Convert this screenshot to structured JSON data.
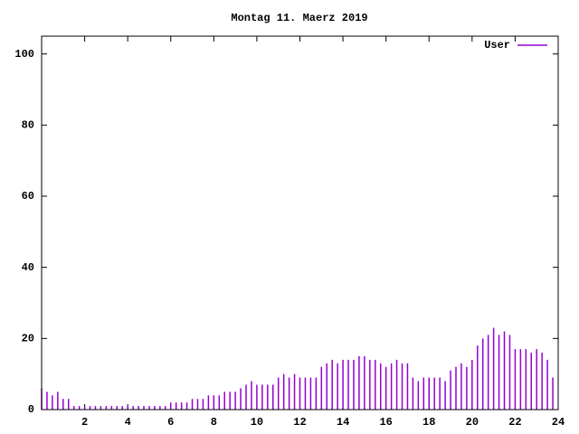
{
  "chart_data": {
    "type": "impulses",
    "title": "Montag 11. Maerz 2019",
    "x": [
      0,
      0.25,
      0.5,
      0.75,
      1,
      1.25,
      1.5,
      1.75,
      2,
      2.25,
      2.5,
      2.75,
      3,
      3.25,
      3.5,
      3.75,
      4,
      4.25,
      4.5,
      4.75,
      5,
      5.25,
      5.5,
      5.75,
      6,
      6.25,
      6.5,
      6.75,
      7,
      7.25,
      7.5,
      7.75,
      8,
      8.25,
      8.5,
      8.75,
      9,
      9.25,
      9.5,
      9.75,
      10,
      10.25,
      10.5,
      10.75,
      11,
      11.25,
      11.5,
      11.75,
      12,
      12.25,
      12.5,
      12.75,
      13,
      13.25,
      13.5,
      13.75,
      14,
      14.25,
      14.5,
      14.75,
      15,
      15.25,
      15.5,
      15.75,
      16,
      16.25,
      16.5,
      16.75,
      17,
      17.25,
      17.5,
      17.75,
      18,
      18.25,
      18.5,
      18.75,
      19,
      19.25,
      19.5,
      19.75,
      20,
      20.25,
      20.5,
      20.75,
      21,
      21.25,
      21.5,
      21.75,
      22,
      22.25,
      22.5,
      22.75,
      23,
      23.25,
      23.5,
      23.75
    ],
    "series": [
      {
        "name": "User",
        "color": "#9400d3",
        "values": [
          6,
          5,
          4,
          5,
          3,
          3,
          1,
          1,
          1,
          1,
          1,
          1,
          1,
          1,
          1,
          1,
          1,
          1,
          1,
          1,
          1,
          1,
          1,
          1,
          2,
          2,
          2,
          2,
          3,
          3,
          3,
          4,
          4,
          4,
          5,
          5,
          5,
          6,
          7,
          8,
          7,
          7,
          7,
          7,
          9,
          10,
          9,
          10,
          9,
          9,
          9,
          9,
          12,
          13,
          14,
          13,
          14,
          14,
          14,
          15,
          15,
          14,
          14,
          13,
          12,
          13,
          14,
          13,
          13,
          9,
          8,
          9,
          9,
          9,
          9,
          8,
          11,
          12,
          13,
          12,
          14,
          18,
          20,
          21,
          23,
          21,
          22,
          21,
          17,
          17,
          17,
          16,
          17,
          16,
          14,
          9
        ]
      }
    ],
    "xlim": [
      0,
      24
    ],
    "xticks": [
      2,
      4,
      6,
      8,
      10,
      12,
      14,
      16,
      18,
      20,
      22,
      24
    ],
    "ylim": [
      0,
      105
    ],
    "yticks": [
      0,
      20,
      40,
      60,
      80,
      100
    ],
    "legend": "upper right"
  }
}
